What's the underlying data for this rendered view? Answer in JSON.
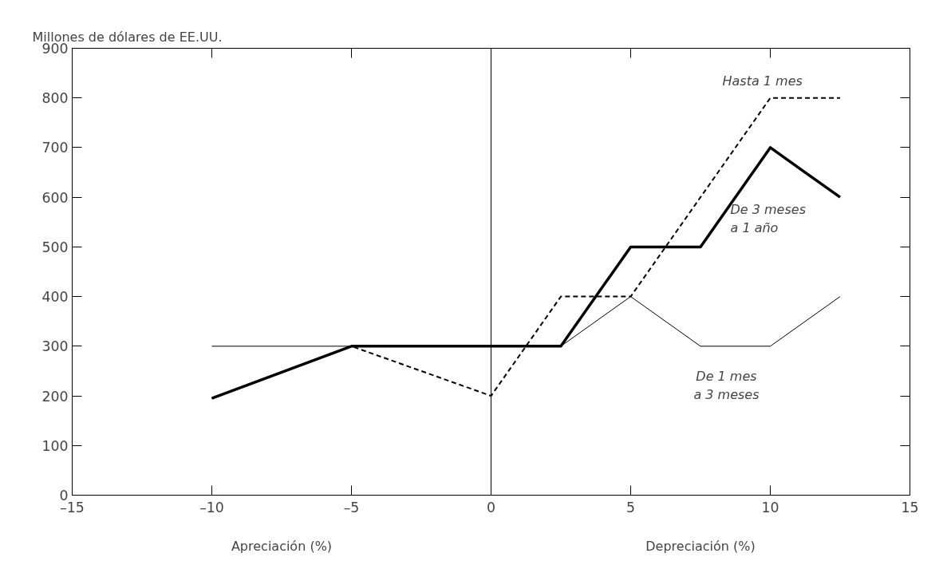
{
  "chart_data": {
    "type": "line",
    "ylabel": "Millones de dólares de EE.UU.",
    "x": [
      -10,
      -5,
      0,
      2.5,
      5,
      7.5,
      10,
      12.5
    ],
    "series": [
      {
        "name": "Hasta 1 mes",
        "color": "#000000",
        "line_style": "dashed",
        "x": [
          -10,
          -5,
          0,
          2.5,
          5,
          10,
          12.5
        ],
        "values": [
          195,
          300,
          200,
          400,
          400,
          800,
          800
        ]
      },
      {
        "name": "De 3 meses a 1 año",
        "color": "#000000",
        "line_style": "solid",
        "values": [
          195,
          300,
          300,
          300,
          500,
          500,
          700,
          600
        ]
      },
      {
        "name": "De 1 mes a 3 meses",
        "color": "#000000",
        "line_style": "solid",
        "values": [
          300,
          300,
          300,
          300,
          400,
          300,
          300,
          400
        ]
      }
    ],
    "xlim": [
      -15,
      15
    ],
    "xticks": [
      {
        "value": -15,
        "label": "–15"
      },
      {
        "value": -10,
        "label": "–10"
      },
      {
        "value": -5,
        "label": "–5"
      },
      0,
      5,
      10,
      15
    ],
    "ylim": [
      0,
      900
    ],
    "yticks": [
      0,
      100,
      200,
      300,
      400,
      500,
      600,
      700,
      800,
      900
    ],
    "ref_lines": [
      {
        "axis": "x",
        "value": 0,
        "color": "#000000"
      }
    ],
    "annotations": [
      "Apreciación (%)",
      "Depreciación (%)"
    ],
    "grid": false,
    "marker": "none"
  }
}
